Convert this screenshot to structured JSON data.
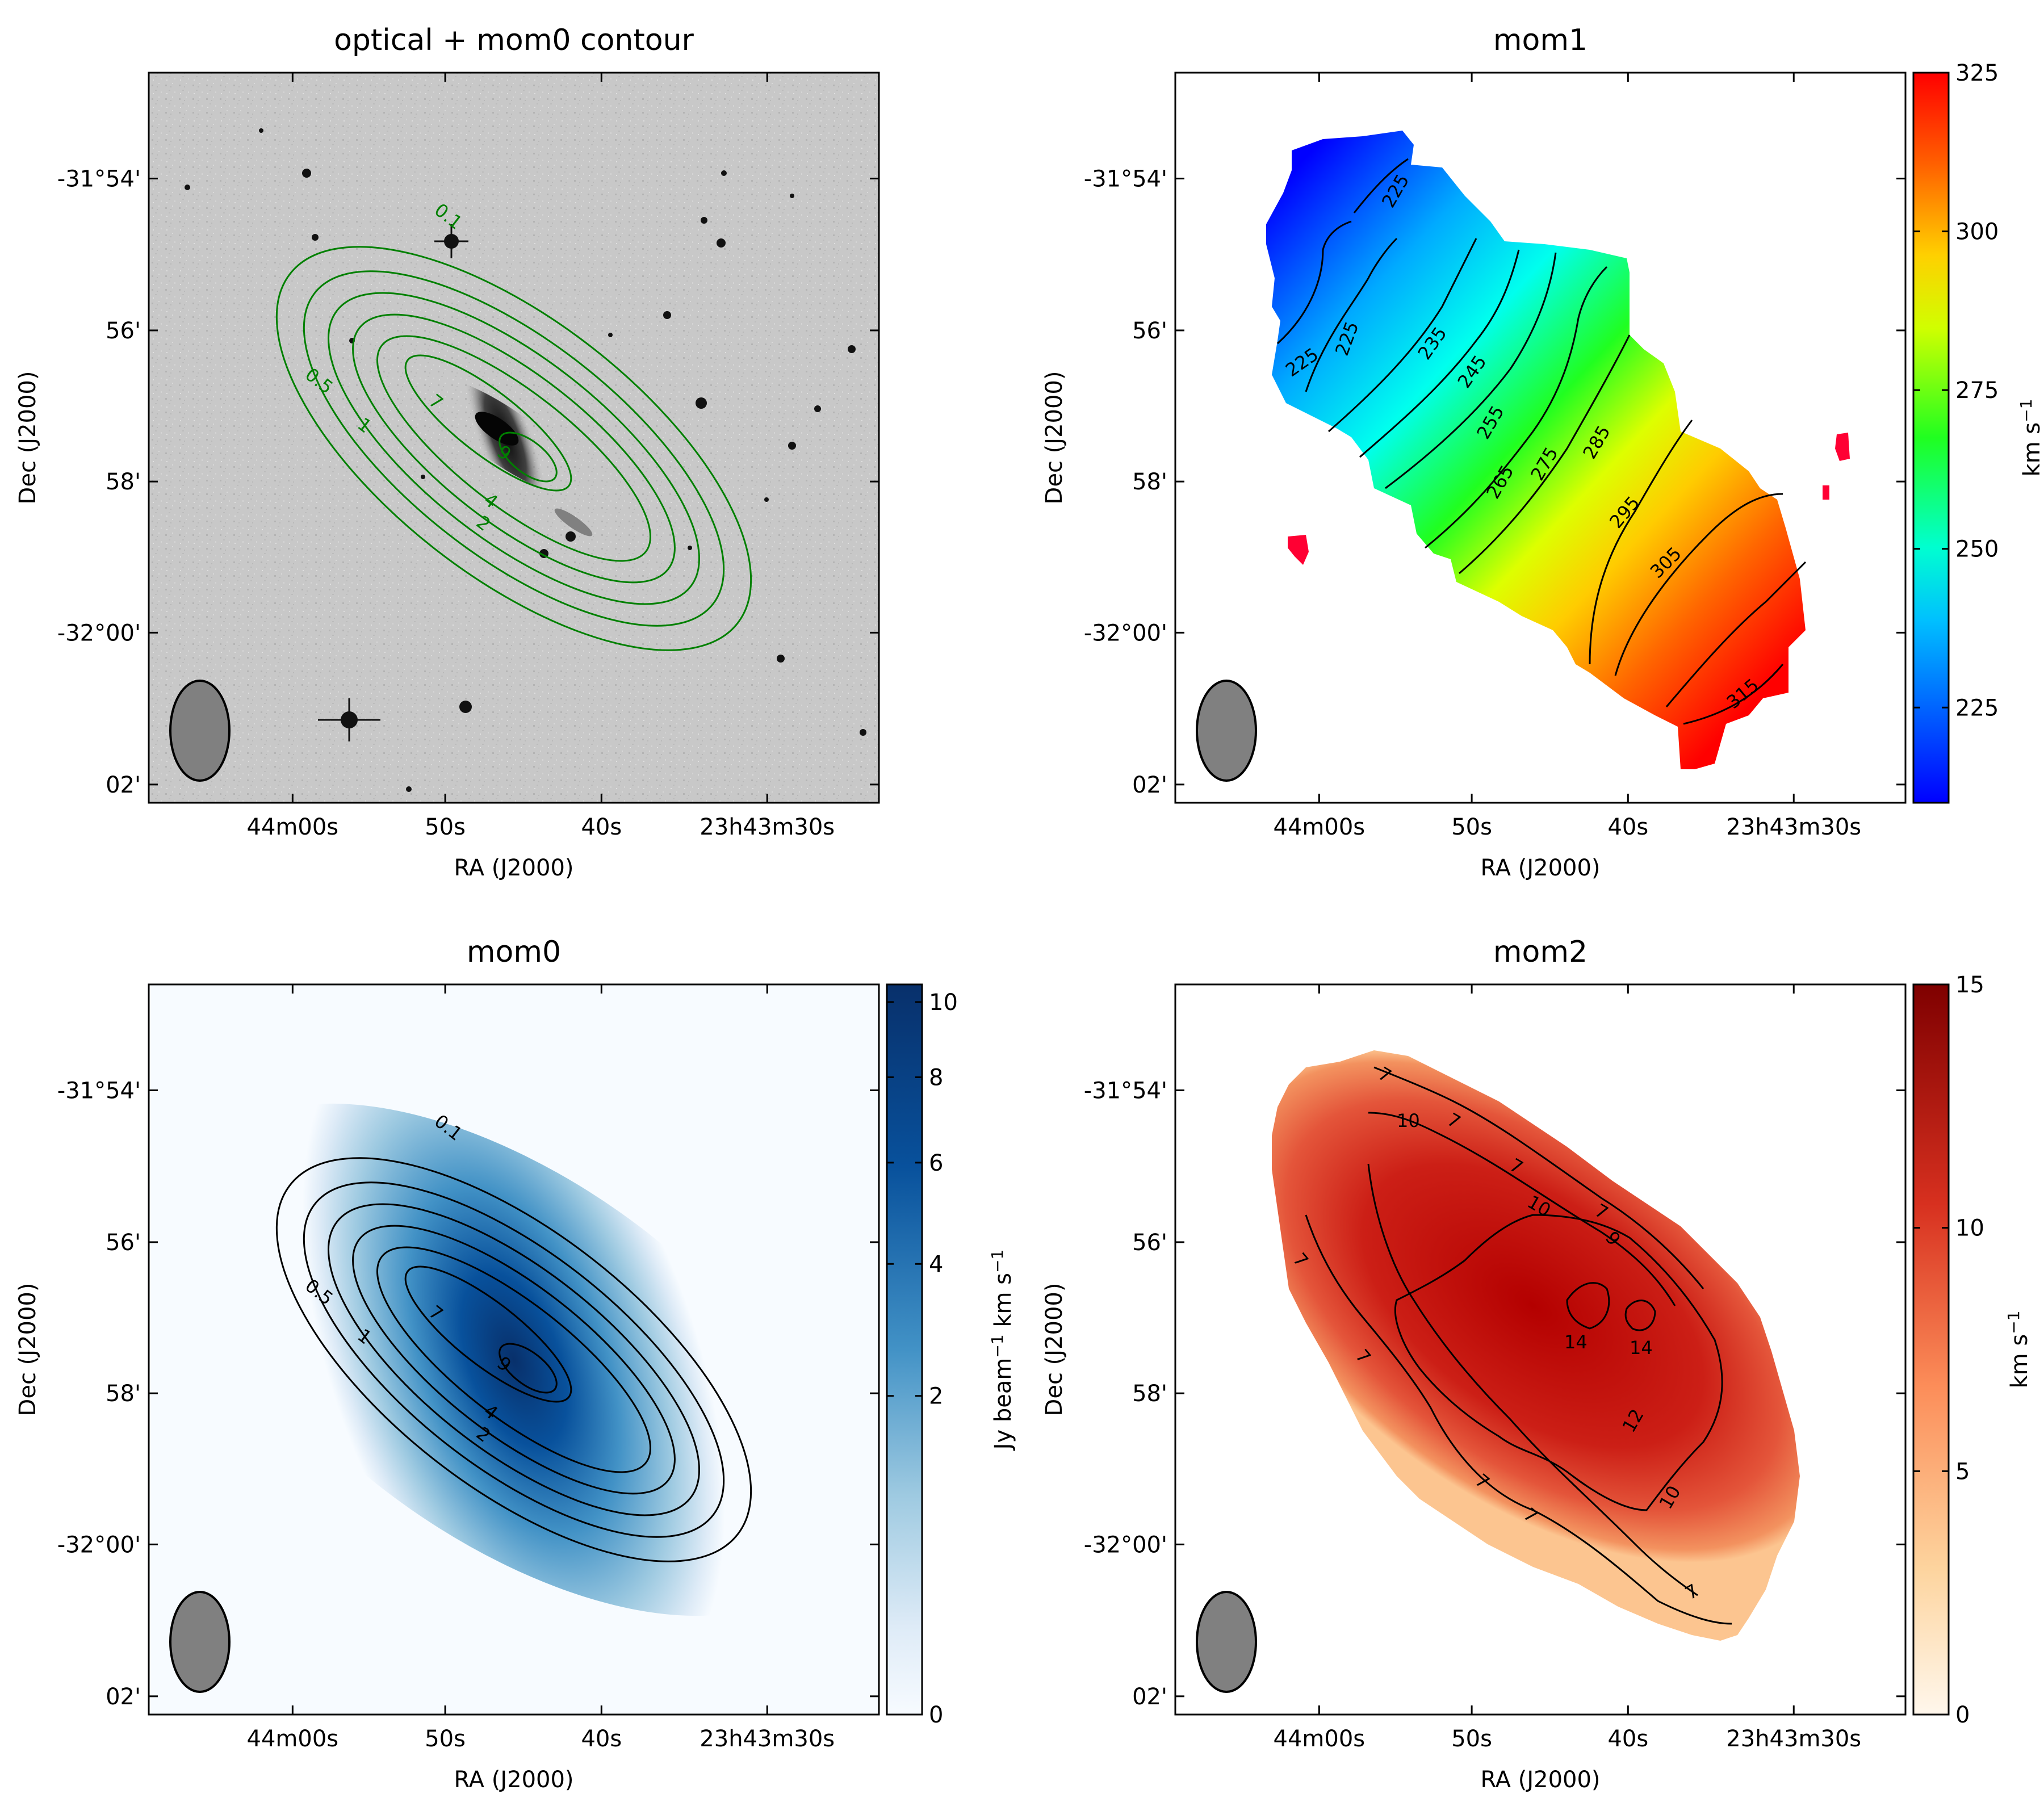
{
  "figure": {
    "common": {
      "xlabel": "RA (J2000)",
      "ylabel": "Dec (J2000)",
      "xticks": [
        "44m00s",
        "50s",
        "40s",
        "23h43m30s"
      ],
      "yticks": [
        "-31°54'",
        "56'",
        "58'",
        "-32°00'",
        "02'"
      ]
    },
    "colors": {
      "contour_green": "#008000",
      "beam": "#808080",
      "optical_bg": "#c8c8c8"
    }
  },
  "chart_data": [
    {
      "id": "optical",
      "type": "heatmap",
      "title": "optical + mom0 contour",
      "xlabel": "RA (J2000)",
      "ylabel": "Dec (J2000)",
      "contour_levels": [
        "0.1",
        "0.5",
        "1",
        "2",
        "4",
        "7",
        "9"
      ],
      "contour_color": "#008000",
      "colormap": "gray"
    },
    {
      "id": "mom1",
      "type": "heatmap",
      "title": "mom1",
      "xlabel": "RA (J2000)",
      "ylabel": "Dec (J2000)",
      "colorbar": {
        "label": "km s",
        "label_sup": "−1",
        "ticks": [
          "225",
          "250",
          "275",
          "300",
          "325"
        ],
        "range": [
          210,
          325
        ],
        "colormap": "jet"
      },
      "contour_labels": [
        "225",
        "225",
        "225",
        "235",
        "245",
        "255",
        "265",
        "275",
        "285",
        "295",
        "305",
        "315"
      ]
    },
    {
      "id": "mom0",
      "type": "heatmap",
      "title": "mom0",
      "xlabel": "RA (J2000)",
      "ylabel": "Dec (J2000)",
      "colorbar": {
        "label_a": "Jy beam",
        "label_a_sup": "−1",
        "label_b": " km s",
        "label_b_sup": "−1",
        "ticks": [
          "0",
          "2",
          "4",
          "6",
          "8",
          "10"
        ],
        "range": [
          0,
          10.5
        ],
        "colormap": "Blues"
      },
      "contour_levels": [
        "0.1",
        "0.5",
        "1",
        "2",
        "4",
        "7",
        "9"
      ]
    },
    {
      "id": "mom2",
      "type": "heatmap",
      "title": "mom2",
      "xlabel": "RA (J2000)",
      "ylabel": "Dec (J2000)",
      "colorbar": {
        "label": "km s",
        "label_sup": "−1",
        "ticks": [
          "0",
          "5",
          "10",
          "15"
        ],
        "range": [
          0,
          15
        ],
        "colormap": "OrRd"
      },
      "contour_labels": [
        "7",
        "10",
        "7",
        "7",
        "10",
        "7",
        "9",
        "7",
        "7",
        "14",
        "14",
        "12",
        "7",
        "7",
        "10",
        "7"
      ]
    }
  ]
}
